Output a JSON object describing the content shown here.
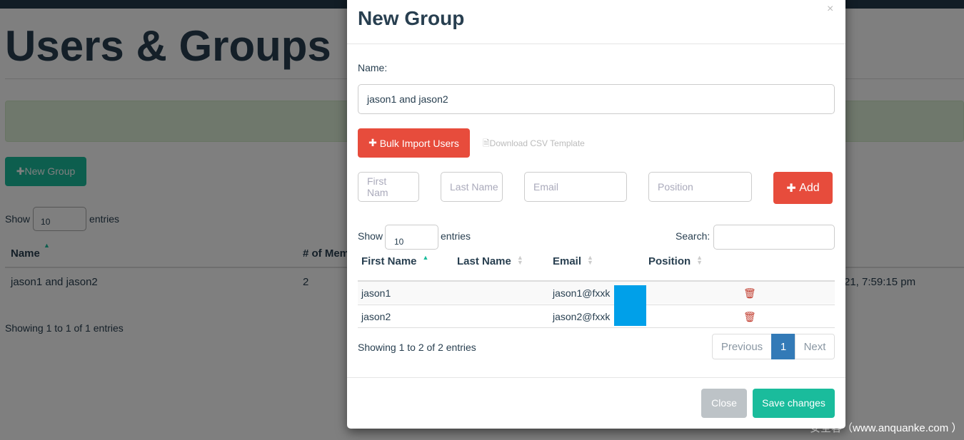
{
  "page": {
    "title": "Users & Groups",
    "new_group": "New Group",
    "show": "Show",
    "entries": "entries",
    "entries_value": "10",
    "columns": [
      "Name",
      "# of Mem"
    ],
    "row": {
      "name": "jason1 and jason2",
      "members": "2",
      "modified": "21, 7:59:15 pm"
    },
    "footer": "Showing 1 to 1 of 1 entries"
  },
  "watermark": "安全客（www.anquanke.com ）",
  "modal": {
    "title": "New Group",
    "close_x": "×",
    "name_label": "Name:",
    "name_value": "jason1 and jason2",
    "bulk_import": "Bulk Import Users",
    "download_csv": "Download CSV Template",
    "placeholders": {
      "first": "First Nam",
      "last": "Last Name",
      "email": "Email",
      "position": "Position"
    },
    "add": "Add",
    "show": "Show",
    "entries_value": "10",
    "entries": "entries",
    "search_label": "Search:",
    "columns": [
      "First Name",
      "Last Name",
      "Email",
      "Position"
    ],
    "rows": [
      {
        "first": "jason1",
        "last": "",
        "email": "jason1@fxxk",
        "position": ""
      },
      {
        "first": "jason2",
        "last": "",
        "email": "jason2@fxxk",
        "position": ""
      }
    ],
    "info": "Showing 1 to 2 of 2 entries",
    "previous": "Previous",
    "page": "1",
    "next": "Next",
    "close": "Close",
    "save": "Save changes"
  },
  "colors": {
    "accent": "#1abc9c",
    "danger": "#e74c3c",
    "primary": "#337ab7",
    "redaction": "#00a0e9"
  }
}
